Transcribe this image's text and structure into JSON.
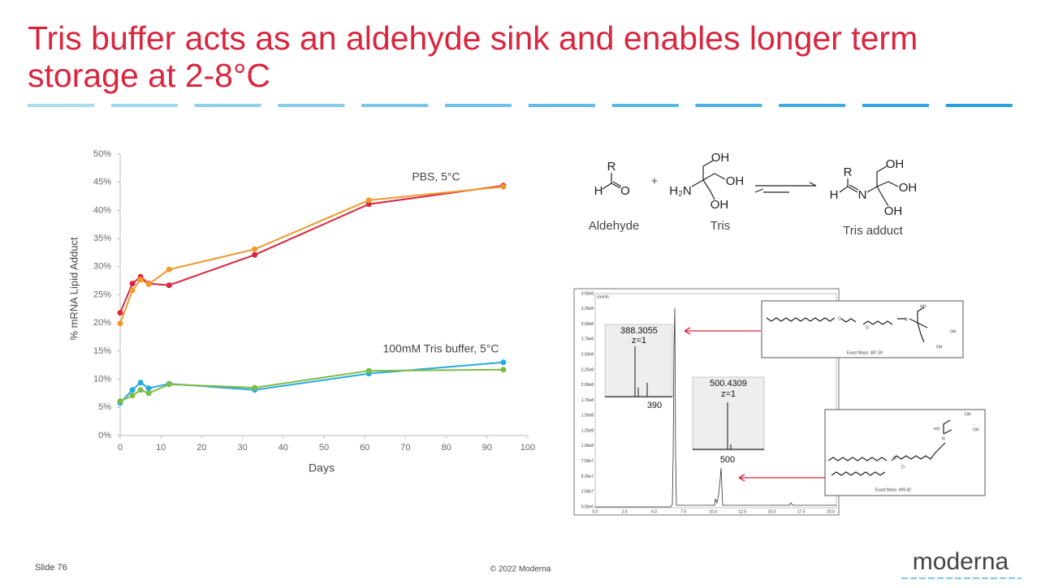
{
  "header": {
    "title": "Tris buffer acts as an aldehyde sink and enables longer term storage at 2-8°C"
  },
  "chart_data": {
    "type": "line",
    "xlabel": "Days",
    "ylabel": "% mRNA Lipid Adduct",
    "x": [
      0,
      3,
      5,
      7,
      12,
      33,
      61,
      94
    ],
    "series": [
      {
        "color": "#d9263f",
        "values": [
          21.8,
          27,
          28.2,
          27,
          26.7,
          32.1,
          41.1,
          44.4
        ]
      },
      {
        "color": "#f0982c",
        "values": [
          19.9,
          25.8,
          27.7,
          26.9,
          29.5,
          33.1,
          41.8,
          44.2
        ]
      },
      {
        "color": "#26aae1",
        "values": [
          5.8,
          8.1,
          9.4,
          8.4,
          9.2,
          8.1,
          11,
          13
        ]
      },
      {
        "color": "#7dbb42",
        "values": [
          6.1,
          7.1,
          8.1,
          7.5,
          9.1,
          8.5,
          11.5,
          11.7
        ]
      }
    ],
    "annotations": [
      "PBS, 5°C",
      "100mM Tris buffer, 5°C"
    ],
    "xlim": [
      0,
      100
    ],
    "xticks": [
      0,
      10,
      20,
      30,
      40,
      50,
      60,
      70,
      80,
      90,
      100
    ],
    "ylim": [
      0,
      50
    ],
    "yticks": [
      {
        "value": 0,
        "label": "0%"
      },
      {
        "value": 5,
        "label": "5%"
      },
      {
        "value": 10,
        "label": "10%"
      },
      {
        "value": 15,
        "label": "15%"
      },
      {
        "value": 20,
        "label": "20%"
      },
      {
        "value": 25,
        "label": "25%"
      },
      {
        "value": 30,
        "label": "30%"
      },
      {
        "value": 35,
        "label": "35%"
      },
      {
        "value": 40,
        "label": "40%"
      },
      {
        "value": 45,
        "label": "45%"
      },
      {
        "value": 50,
        "label": "50%"
      }
    ],
    "grid": false
  },
  "reaction": {
    "aldehyde_atoms": [
      "R",
      "H",
      "O"
    ],
    "plus": "+",
    "tris_atoms": [
      "H₂N",
      "OH",
      "OH",
      "OH"
    ],
    "adduct_atoms": [
      "R",
      "H",
      "N",
      "OH",
      "OH",
      "OH"
    ],
    "labels": [
      "Aldehyde",
      "Tris",
      "Tris adduct"
    ]
  },
  "spectrum": {
    "unit": "counts",
    "yticklabels": [
      "0.00e0",
      "2.50e7",
      "5.00e7",
      "7.50e7",
      "1.00e8",
      "1.25e8",
      "1.50e8",
      "1.75e8",
      "2.00e8",
      "2.25e8",
      "2.50e8",
      "2.75e8",
      "3.00e8",
      "3.25e8",
      "3.50e8"
    ],
    "xticklabels": [
      "0.0",
      "2.5",
      "5.0",
      "7.5",
      "10.0",
      "12.5",
      "15.0",
      "17.5",
      "20.0"
    ],
    "inset1": {
      "mass": "388.3055",
      "charge": "z=1",
      "tick": "390"
    },
    "inset2": {
      "mass": "500.4309",
      "charge": "z=1",
      "tick": "500"
    },
    "structure1": {
      "atoms": [
        "O",
        "O",
        "N",
        "HO",
        "OH",
        "OH"
      ],
      "caption": "Exact Mass: 387.30"
    },
    "structure2": {
      "atoms": [
        "O",
        "O",
        "N",
        "HO",
        "OH",
        "OH"
      ],
      "caption": "Exact Mass: 499.42"
    }
  },
  "footer": {
    "slide": "Slide 76",
    "copyright": "© 2022 Moderna",
    "logo": "moderna"
  }
}
